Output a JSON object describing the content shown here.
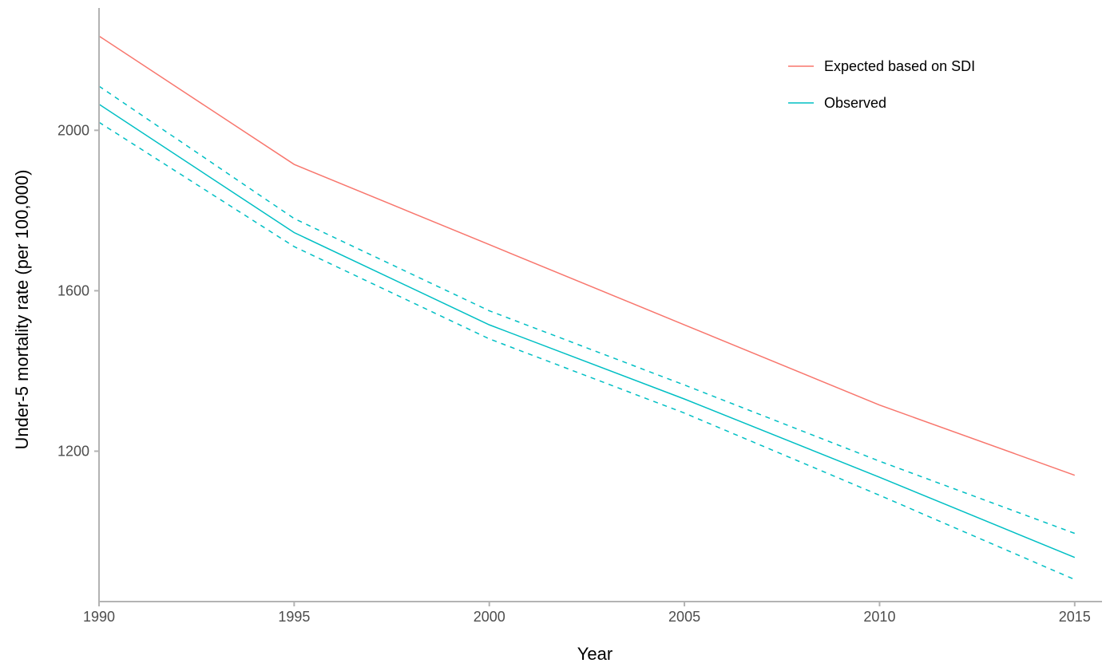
{
  "chart_data": {
    "type": "line",
    "title": "",
    "xlabel": "Year",
    "ylabel": "Under-5 mortality rate (per 100,000)",
    "x": [
      1990,
      1995,
      2000,
      2005,
      2010,
      2015
    ],
    "xlim": [
      1990,
      2015.7
    ],
    "ylim": [
      825,
      2305
    ],
    "x_ticks": [
      "1990",
      "1995",
      "2000",
      "2005",
      "2010",
      "2015"
    ],
    "y_ticks": [
      "1200",
      "1600",
      "2000"
    ],
    "x_tick_values": [
      1990,
      1995,
      2000,
      2005,
      2010,
      2015
    ],
    "y_tick_values": [
      1200,
      1600,
      2000
    ],
    "grid": false,
    "legend_position": "top-right",
    "series": [
      {
        "name": "Expected based on SDI",
        "color": "#F8766D",
        "style": "solid",
        "values": [
          2235,
          1915,
          1715,
          1515,
          1315,
          1140
        ]
      },
      {
        "name": "Observed",
        "color": "#00BFC4",
        "style": "solid",
        "values": [
          2065,
          1745,
          1515,
          1330,
          1135,
          935
        ]
      },
      {
        "name": "",
        "color": "#00BFC4",
        "style": "dashed",
        "values": [
          2110,
          1780,
          1550,
          1365,
          1175,
          995
        ]
      },
      {
        "name": "",
        "color": "#00BFC4",
        "style": "dashed",
        "values": [
          2020,
          1710,
          1480,
          1295,
          1090,
          880
        ]
      }
    ]
  }
}
